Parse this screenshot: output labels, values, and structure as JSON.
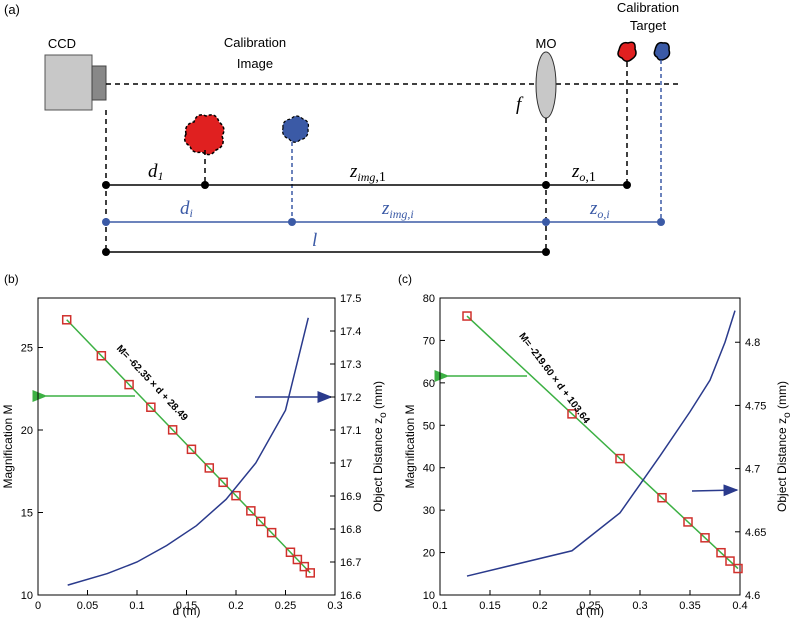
{
  "diagram": {
    "panel": "(a)",
    "ccd": "CCD",
    "image_label": [
      "Calibration",
      "Image"
    ],
    "mo": "MO",
    "f": "f",
    "target_label": [
      "Calibration",
      "Target"
    ],
    "d1": {
      "main": "d",
      "sub": "1"
    },
    "zimg1": {
      "main": "z",
      "sub": "img",
      "tail": ",1"
    },
    "zo1": {
      "main": "z",
      "sub": "o",
      "tail": ",1"
    },
    "di": {
      "main": "d",
      "sub": "i"
    },
    "zimgi": {
      "main": "z",
      "sub": "img,i"
    },
    "zoi": {
      "main": "z",
      "sub": "o,i"
    },
    "l": "l"
  },
  "chart_data": [
    {
      "type": "line",
      "panel": "(b)",
      "xlabel": "d (m)",
      "ylabel": "Magnification M",
      "y2label": [
        "Object Distance z",
        "o",
        " (mm)"
      ],
      "annotation": "M= -62.35 × d + 28.49",
      "xlim": [
        0,
        0.3
      ],
      "xticks": [
        0,
        0.05,
        0.1,
        0.15,
        0.2,
        0.25,
        0.3
      ],
      "ylim": [
        10,
        28
      ],
      "yticks": [
        10,
        15,
        20,
        25
      ],
      "y2lim": [
        16.6,
        17.5
      ],
      "y2ticks": [
        16.6,
        16.7,
        16.8,
        16.9,
        17,
        17.1,
        17.2,
        17.3,
        17.4,
        17.5
      ],
      "series": [
        {
          "style": "line",
          "color": "#3cb043",
          "x": [
            0.029,
            0.275
          ],
          "values": [
            26.68,
            11.34
          ]
        },
        {
          "style": "markers",
          "color": "#d0302c",
          "x": [
            0.029,
            0.064,
            0.092,
            0.114,
            0.136,
            0.155,
            0.173,
            0.187,
            0.2,
            0.215,
            0.225,
            0.236,
            0.255,
            0.262,
            0.269,
            0.275
          ],
          "values": [
            26.68,
            24.5,
            22.75,
            21.38,
            20.01,
            18.83,
            17.7,
            16.83,
            16.02,
            15.1,
            14.46,
            13.78,
            12.59,
            12.15,
            11.72,
            11.34
          ]
        },
        {
          "style": "line",
          "color": "#2a3a8c",
          "axis": "y2",
          "x": [
            0.03,
            0.07,
            0.1,
            0.13,
            0.16,
            0.19,
            0.22,
            0.25,
            0.273
          ],
          "values": [
            16.63,
            16.665,
            16.7,
            16.75,
            16.81,
            16.89,
            17.0,
            17.16,
            17.44
          ]
        }
      ]
    },
    {
      "type": "line",
      "panel": "(c)",
      "xlabel": "d (m)",
      "ylabel": "Magnification M",
      "y2label": [
        "Object Distance z",
        "o",
        " (mm)"
      ],
      "annotation": "M= -219.60 × d + 103.64",
      "xlim": [
        0.1,
        0.4
      ],
      "xticks": [
        0.1,
        0.15,
        0.2,
        0.25,
        0.3,
        0.35,
        0.4
      ],
      "ylim": [
        10,
        80
      ],
      "yticks": [
        10,
        20,
        30,
        40,
        50,
        60,
        70,
        80
      ],
      "y2lim": [
        4.6,
        4.835
      ],
      "y2ticks": [
        4.6,
        4.65,
        4.7,
        4.75,
        4.8
      ],
      "series": [
        {
          "style": "line",
          "color": "#3cb043",
          "x": [
            0.127,
            0.398
          ],
          "values": [
            75.75,
            16.24
          ]
        },
        {
          "style": "markers",
          "color": "#d0302c",
          "x": [
            0.127,
            0.232,
            0.28,
            0.322,
            0.348,
            0.365,
            0.381,
            0.39,
            0.398
          ],
          "values": [
            75.75,
            52.69,
            42.15,
            32.93,
            27.22,
            23.48,
            19.97,
            18.0,
            16.24
          ]
        },
        {
          "style": "line",
          "color": "#2a3a8c",
          "axis": "y2",
          "x": [
            0.127,
            0.232,
            0.28,
            0.32,
            0.35,
            0.37,
            0.385,
            0.395
          ],
          "values": [
            4.615,
            4.635,
            4.665,
            4.71,
            4.745,
            4.77,
            4.8,
            4.825
          ]
        }
      ]
    }
  ]
}
